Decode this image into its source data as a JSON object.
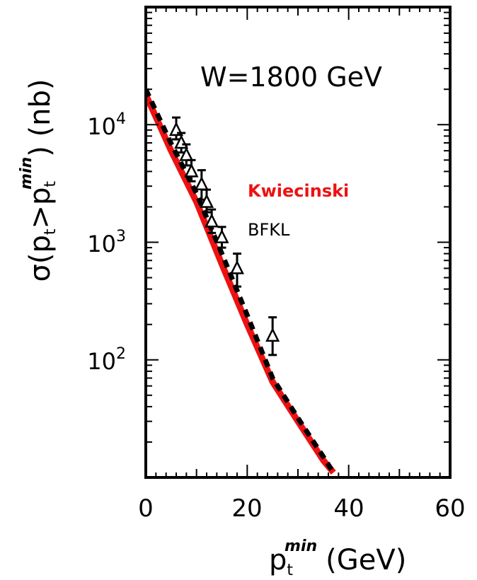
{
  "chart_data": {
    "type": "line",
    "xscale": "linear",
    "yscale": "log",
    "xlim": [
      0,
      60
    ],
    "ylim": [
      10,
      100000
    ],
    "x_ticks": [
      0,
      20,
      40,
      60
    ],
    "x_tick_labels": [
      "0",
      "20",
      "40",
      "60"
    ],
    "y_major_ticks": [
      100,
      1000,
      10000
    ],
    "y_tick_labels": [
      {
        "value": 100,
        "base": "10",
        "exp": "2"
      },
      {
        "value": 1000,
        "base": "10",
        "exp": "3"
      },
      {
        "value": 10000,
        "base": "10",
        "exp": "4"
      }
    ],
    "xlabel": {
      "main": "p",
      "sub": "t",
      "sup": "min",
      "unit": "(GeV)"
    },
    "ylabel": {
      "prefix": "σ(p",
      "sub1": "t",
      "mid": ">p",
      "sub2": "t",
      "sup": "min",
      "suffix": ") (nb)"
    },
    "annotation": "W=1800 GeV",
    "grid": false,
    "series": [
      {
        "name": "Kwiecinski",
        "color": "#ee1111",
        "style": "solid",
        "x": [
          0,
          5,
          10,
          15,
          20,
          25,
          30,
          35,
          37
        ],
        "y": [
          18000,
          6000,
          2200,
          650,
          200,
          65,
          30,
          14,
          11
        ]
      },
      {
        "name": "BFKL",
        "color": "#000000",
        "style": "dashed",
        "x": [
          0,
          5,
          10,
          15,
          20,
          25,
          30,
          35,
          37
        ],
        "y": [
          20000,
          6900,
          2600,
          800,
          240,
          70,
          32,
          15,
          11
        ]
      },
      {
        "name": "data",
        "style": "points",
        "marker": "open-triangle",
        "points": [
          {
            "x": 6,
            "y": 9000,
            "ylo": 7500,
            "yhi": 11500
          },
          {
            "x": 7,
            "y": 7000,
            "ylo": 5800,
            "yhi": 8500
          },
          {
            "x": 8,
            "y": 5500,
            "ylo": 4500,
            "yhi": 6800
          },
          {
            "x": 9,
            "y": 4000,
            "ylo": 3300,
            "yhi": 5000
          },
          {
            "x": 11,
            "y": 3100,
            "ylo": 2300,
            "yhi": 4100
          },
          {
            "x": 12,
            "y": 2200,
            "ylo": 1800,
            "yhi": 2800
          },
          {
            "x": 13,
            "y": 1500,
            "ylo": 1200,
            "yhi": 1900
          },
          {
            "x": 15,
            "y": 1100,
            "ylo": 900,
            "yhi": 1350
          },
          {
            "x": 18,
            "y": 600,
            "ylo": 420,
            "yhi": 800
          },
          {
            "x": 25,
            "y": 160,
            "ylo": 110,
            "yhi": 230
          }
        ]
      }
    ]
  }
}
